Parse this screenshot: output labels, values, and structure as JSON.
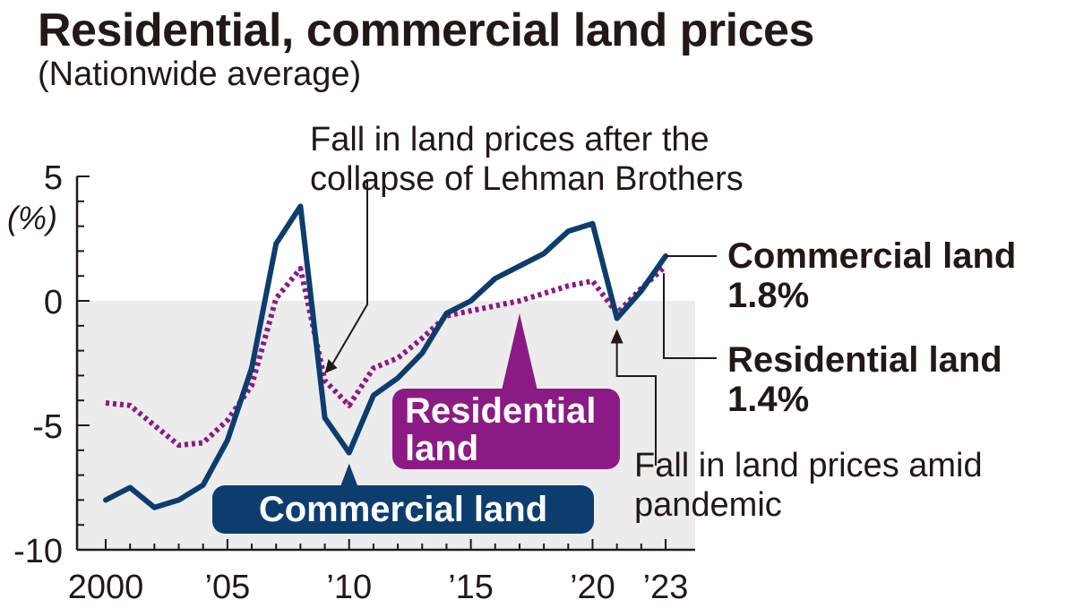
{
  "header": {
    "title": "Residential, commercial land prices",
    "subtitle": "(Nationwide average)"
  },
  "chart_data": {
    "type": "line",
    "title": "Residential, commercial land prices",
    "subtitle": "(Nationwide average)",
    "ylabel": "(%)",
    "ylim": [
      -10,
      5
    ],
    "xlim": [
      2000,
      2023
    ],
    "y_ticks": [
      5,
      0,
      -5,
      -10
    ],
    "y_tick_labels": [
      "5",
      "0",
      "-5",
      "-10"
    ],
    "x_ticks": [
      2000,
      2005,
      2010,
      2015,
      2020,
      2023
    ],
    "x_tick_labels": [
      "2000",
      "’05",
      "’10",
      "’15",
      "’20",
      "’23"
    ],
    "negative_region_shaded": true,
    "x": [
      2000,
      2001,
      2002,
      2003,
      2004,
      2005,
      2006,
      2007,
      2008,
      2009,
      2010,
      2011,
      2012,
      2013,
      2014,
      2015,
      2016,
      2017,
      2018,
      2019,
      2020,
      2021,
      2022,
      2023
    ],
    "series": [
      {
        "name": "Commercial land",
        "color": "#0c3d6e",
        "style": "solid",
        "values": [
          -8.0,
          -7.5,
          -8.3,
          -8.0,
          -7.4,
          -5.6,
          -2.7,
          2.3,
          3.8,
          -4.7,
          -6.1,
          -3.8,
          -3.1,
          -2.1,
          -0.5,
          0.0,
          0.9,
          1.4,
          1.9,
          2.8,
          3.1,
          -0.7,
          0.4,
          1.8
        ],
        "end_label": "Commercial land",
        "end_value_label": "1.8%",
        "tag_label": "Commercial land"
      },
      {
        "name": "Residential land",
        "color": "#8b1a85",
        "style": "dotted",
        "values": [
          -4.1,
          -4.2,
          -5.0,
          -5.8,
          -5.7,
          -4.8,
          -3.4,
          0.1,
          1.3,
          -3.2,
          -4.2,
          -2.7,
          -2.3,
          -1.5,
          -0.6,
          -0.4,
          -0.2,
          0.0,
          0.3,
          0.6,
          0.8,
          -0.5,
          0.5,
          1.4
        ],
        "end_label": "Residential land",
        "end_value_label": "1.4%",
        "tag_label_line1": "Residential",
        "tag_label_line2": "land"
      }
    ],
    "annotations": [
      {
        "id": "lehman",
        "line1": "Fall in land prices after the",
        "line2": "collapse of Lehman Brothers",
        "points_to_x": 2009
      },
      {
        "id": "pandemic",
        "line1": "Fall in land prices amid",
        "line2": "pandemic",
        "points_to_x": 2021
      }
    ]
  }
}
